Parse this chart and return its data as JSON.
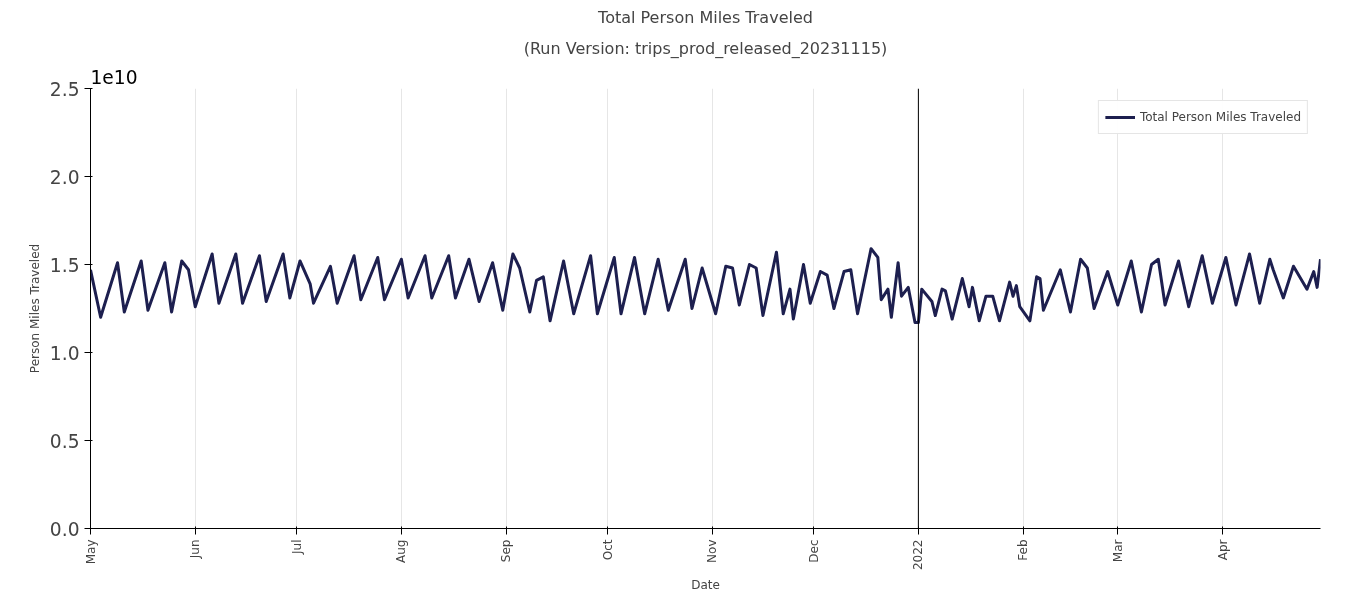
{
  "chart_data": {
    "type": "line",
    "title": "Total Person Miles Traveled",
    "subtitle": "(Run Version: trips_prod_released_20231115)",
    "xlabel": "Date",
    "ylabel": "Person Miles Traveled",
    "annotations": [
      "1e10"
    ],
    "xlim": [
      "2021-05-01",
      "2022-04-30"
    ],
    "xticks": [
      {
        "value": "2021-05-01",
        "label": "May"
      },
      {
        "value": "2021-06-01",
        "label": "Jun"
      },
      {
        "value": "2021-07-01",
        "label": "Jul"
      },
      {
        "value": "2021-08-01",
        "label": "Aug"
      },
      {
        "value": "2021-09-01",
        "label": "Sep"
      },
      {
        "value": "2021-10-01",
        "label": "Oct"
      },
      {
        "value": "2021-11-01",
        "label": "Nov"
      },
      {
        "value": "2021-12-01",
        "label": "Dec"
      },
      {
        "value": "2022-01-01",
        "label": "2022"
      },
      {
        "value": "2022-02-01",
        "label": "Feb"
      },
      {
        "value": "2022-03-01",
        "label": "Mar"
      },
      {
        "value": "2022-04-01",
        "label": "Apr"
      }
    ],
    "ylim": [
      0,
      2.5
    ],
    "yticks": [
      {
        "value": 0,
        "label": "0.0"
      },
      0.5,
      {
        "value": 1,
        "label": "1.0"
      },
      1.5,
      {
        "value": 2,
        "label": "2.0"
      },
      2.5
    ],
    "grid": "x",
    "legend": "top right",
    "marker": "none",
    "line_style": "solid",
    "ref_lines": [
      {
        "axis": "x",
        "value": "2022-01-01",
        "color": "#000000"
      }
    ],
    "x": [
      "2021-05-01",
      "2021-05-04",
      "2021-05-09",
      "2021-05-11",
      "2021-05-16",
      "2021-05-18",
      "2021-05-23",
      "2021-05-25",
      "2021-05-28",
      "2021-05-30",
      "2021-06-01",
      "2021-06-06",
      "2021-06-08",
      "2021-06-13",
      "2021-06-15",
      "2021-06-20",
      "2021-06-22",
      "2021-06-27",
      "2021-06-29",
      "2021-07-02",
      "2021-07-05",
      "2021-07-06",
      "2021-07-11",
      "2021-07-13",
      "2021-07-18",
      "2021-07-20",
      "2021-07-25",
      "2021-07-27",
      "2021-08-01",
      "2021-08-03",
      "2021-08-08",
      "2021-08-10",
      "2021-08-15",
      "2021-08-17",
      "2021-08-21",
      "2021-08-24",
      "2021-08-28",
      "2021-08-31",
      "2021-09-03",
      "2021-09-05",
      "2021-09-08",
      "2021-09-10",
      "2021-09-12",
      "2021-09-14",
      "2021-09-18",
      "2021-09-21",
      "2021-09-26",
      "2021-09-28",
      "2021-10-03",
      "2021-10-05",
      "2021-10-09",
      "2021-10-12",
      "2021-10-16",
      "2021-10-19",
      "2021-10-24",
      "2021-10-26",
      "2021-10-29",
      "2021-11-02",
      "2021-11-05",
      "2021-11-07",
      "2021-11-09",
      "2021-11-12",
      "2021-11-14",
      "2021-11-16",
      "2021-11-20",
      "2021-11-22",
      "2021-11-24",
      "2021-11-25",
      "2021-11-28",
      "2021-11-30",
      "2021-12-03",
      "2021-12-05",
      "2021-12-07",
      "2021-12-10",
      "2021-12-12",
      "2021-12-14",
      "2021-12-18",
      "2021-12-20",
      "2021-12-21",
      "2021-12-23",
      "2021-12-24",
      "2021-12-26",
      "2021-12-27",
      "2021-12-29",
      "2021-12-31",
      "2022-01-01",
      "2022-01-02",
      "2022-01-05",
      "2022-01-06",
      "2022-01-08",
      "2022-01-09",
      "2022-01-11",
      "2022-01-14",
      "2022-01-16",
      "2022-01-17",
      "2022-01-19",
      "2022-01-21",
      "2022-01-23",
      "2022-01-25",
      "2022-01-28",
      "2022-01-29",
      "2022-01-30",
      "2022-01-31",
      "2022-02-03",
      "2022-02-05",
      "2022-02-06",
      "2022-02-07",
      "2022-02-12",
      "2022-02-15",
      "2022-02-18",
      "2022-02-20",
      "2022-02-22",
      "2022-02-26",
      "2022-03-01",
      "2022-03-05",
      "2022-03-08",
      "2022-03-11",
      "2022-03-13",
      "2022-03-15",
      "2022-03-19",
      "2022-03-22",
      "2022-03-26",
      "2022-03-29",
      "2022-04-02",
      "2022-04-05",
      "2022-04-09",
      "2022-04-12",
      "2022-04-15",
      "2022-04-16",
      "2022-04-19",
      "2022-04-22",
      "2022-04-26",
      "2022-04-28",
      "2022-04-29",
      "2022-04-30"
    ],
    "series": [
      {
        "name": "Total Person Miles Traveled",
        "color": "#1d1f4f",
        "values": [
          1.47,
          1.2,
          1.51,
          1.23,
          1.52,
          1.24,
          1.51,
          1.23,
          1.52,
          1.47,
          1.26,
          1.56,
          1.28,
          1.56,
          1.28,
          1.55,
          1.29,
          1.56,
          1.31,
          1.52,
          1.39,
          1.28,
          1.49,
          1.28,
          1.55,
          1.3,
          1.54,
          1.3,
          1.53,
          1.31,
          1.55,
          1.31,
          1.55,
          1.31,
          1.53,
          1.29,
          1.51,
          1.24,
          1.56,
          1.48,
          1.23,
          1.41,
          1.43,
          1.18,
          1.52,
          1.22,
          1.55,
          1.22,
          1.54,
          1.22,
          1.54,
          1.22,
          1.53,
          1.24,
          1.53,
          1.25,
          1.48,
          1.22,
          1.49,
          1.48,
          1.27,
          1.5,
          1.48,
          1.21,
          1.57,
          1.22,
          1.36,
          1.19,
          1.5,
          1.28,
          1.46,
          1.44,
          1.25,
          1.46,
          1.47,
          1.22,
          1.59,
          1.54,
          1.3,
          1.36,
          1.2,
          1.51,
          1.32,
          1.37,
          1.17,
          1.17,
          1.36,
          1.29,
          1.21,
          1.36,
          1.35,
          1.19,
          1.42,
          1.26,
          1.37,
          1.18,
          1.32,
          1.32,
          1.18,
          1.4,
          1.32,
          1.38,
          1.26,
          1.18,
          1.43,
          1.42,
          1.24,
          1.47,
          1.23,
          1.53,
          1.48,
          1.25,
          1.46,
          1.27,
          1.52,
          1.23,
          1.5,
          1.53,
          1.27,
          1.52,
          1.26,
          1.55,
          1.28,
          1.54,
          1.27,
          1.56,
          1.28,
          1.53,
          1.47,
          1.31,
          1.49,
          1.36,
          1.46,
          1.37,
          1.53
        ]
      }
    ]
  }
}
